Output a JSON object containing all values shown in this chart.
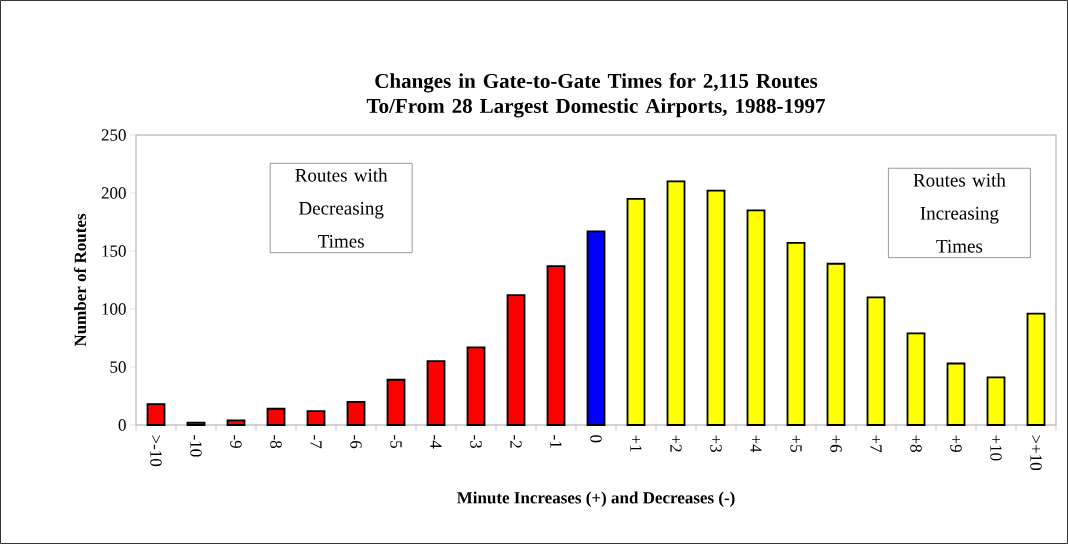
{
  "chart_data": {
    "type": "bar",
    "title": "Changes in Gate-to-Gate Times for 2,115 Routes To/From 28 Largest Domestic Airports, 1988-1997",
    "xlabel": "Minute Increases (+) and Decreases (-)",
    "ylabel": "Number of Routes",
    "categories": [
      ">-10",
      "-10",
      "-9",
      "-8",
      "-7",
      "-6",
      "-5",
      "-4",
      "-3",
      "-2",
      "-1",
      "0",
      "+1",
      "+2",
      "+3",
      "+4",
      "+5",
      "+6",
      "+7",
      "+8",
      "+9",
      "+10",
      ">+10"
    ],
    "values": [
      18,
      2,
      4,
      14,
      12,
      20,
      39,
      55,
      67,
      112,
      137,
      167,
      195,
      210,
      202,
      185,
      157,
      139,
      110,
      79,
      53,
      41,
      96
    ],
    "colors": [
      "#ff0000",
      "#ff0000",
      "#ff0000",
      "#ff0000",
      "#ff0000",
      "#ff0000",
      "#ff0000",
      "#ff0000",
      "#ff0000",
      "#ff0000",
      "#ff0000",
      "#0000ff",
      "#ffff00",
      "#ffff00",
      "#ffff00",
      "#ffff00",
      "#ffff00",
      "#ffff00",
      "#ffff00",
      "#ffff00",
      "#ffff00",
      "#ffff00",
      "#ffff00"
    ],
    "ylim": [
      0,
      250
    ],
    "yticks": [
      0,
      50,
      100,
      150,
      200,
      250
    ],
    "annotations": [
      "Routes with Decreasing Times",
      "Routes with Increasing Times"
    ],
    "grid": false
  }
}
